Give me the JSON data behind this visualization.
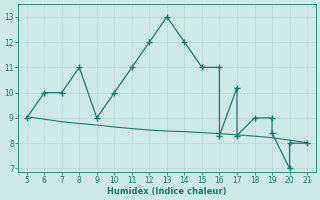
{
  "x_main": [
    5,
    6,
    7,
    8,
    9,
    10,
    11,
    12,
    13,
    14,
    15,
    16,
    16,
    17,
    17,
    18,
    19,
    19,
    20,
    20,
    21
  ],
  "y_main": [
    9,
    10,
    10,
    11,
    9,
    10,
    11,
    12,
    13,
    12,
    11,
    11,
    8.3,
    10.2,
    8.3,
    9,
    9,
    8.4,
    7,
    8,
    8
  ],
  "x_trend": [
    5,
    6,
    7,
    8,
    9,
    10,
    11,
    12,
    13,
    14,
    15,
    16,
    17,
    18,
    19,
    20,
    21
  ],
  "y_trend": [
    9.05,
    8.95,
    8.85,
    8.78,
    8.72,
    8.64,
    8.58,
    8.52,
    8.48,
    8.46,
    8.42,
    8.38,
    8.33,
    8.28,
    8.22,
    8.12,
    8.02
  ],
  "xlabel": "Humidex (Indice chaleur)",
  "xlim": [
    4.5,
    21.5
  ],
  "ylim": [
    6.85,
    13.5
  ],
  "yticks": [
    7,
    8,
    9,
    10,
    11,
    12,
    13
  ],
  "xticks": [
    5,
    6,
    7,
    8,
    9,
    10,
    11,
    12,
    13,
    14,
    15,
    16,
    17,
    18,
    19,
    20,
    21
  ],
  "line_color": "#1a7a6e",
  "bg_color": "#ceeae7",
  "grid_color_major": "#b8d8d5",
  "grid_color_minor": "#d8eeec",
  "tick_color": "#1a7a6e",
  "label_color": "#1a7a6e"
}
